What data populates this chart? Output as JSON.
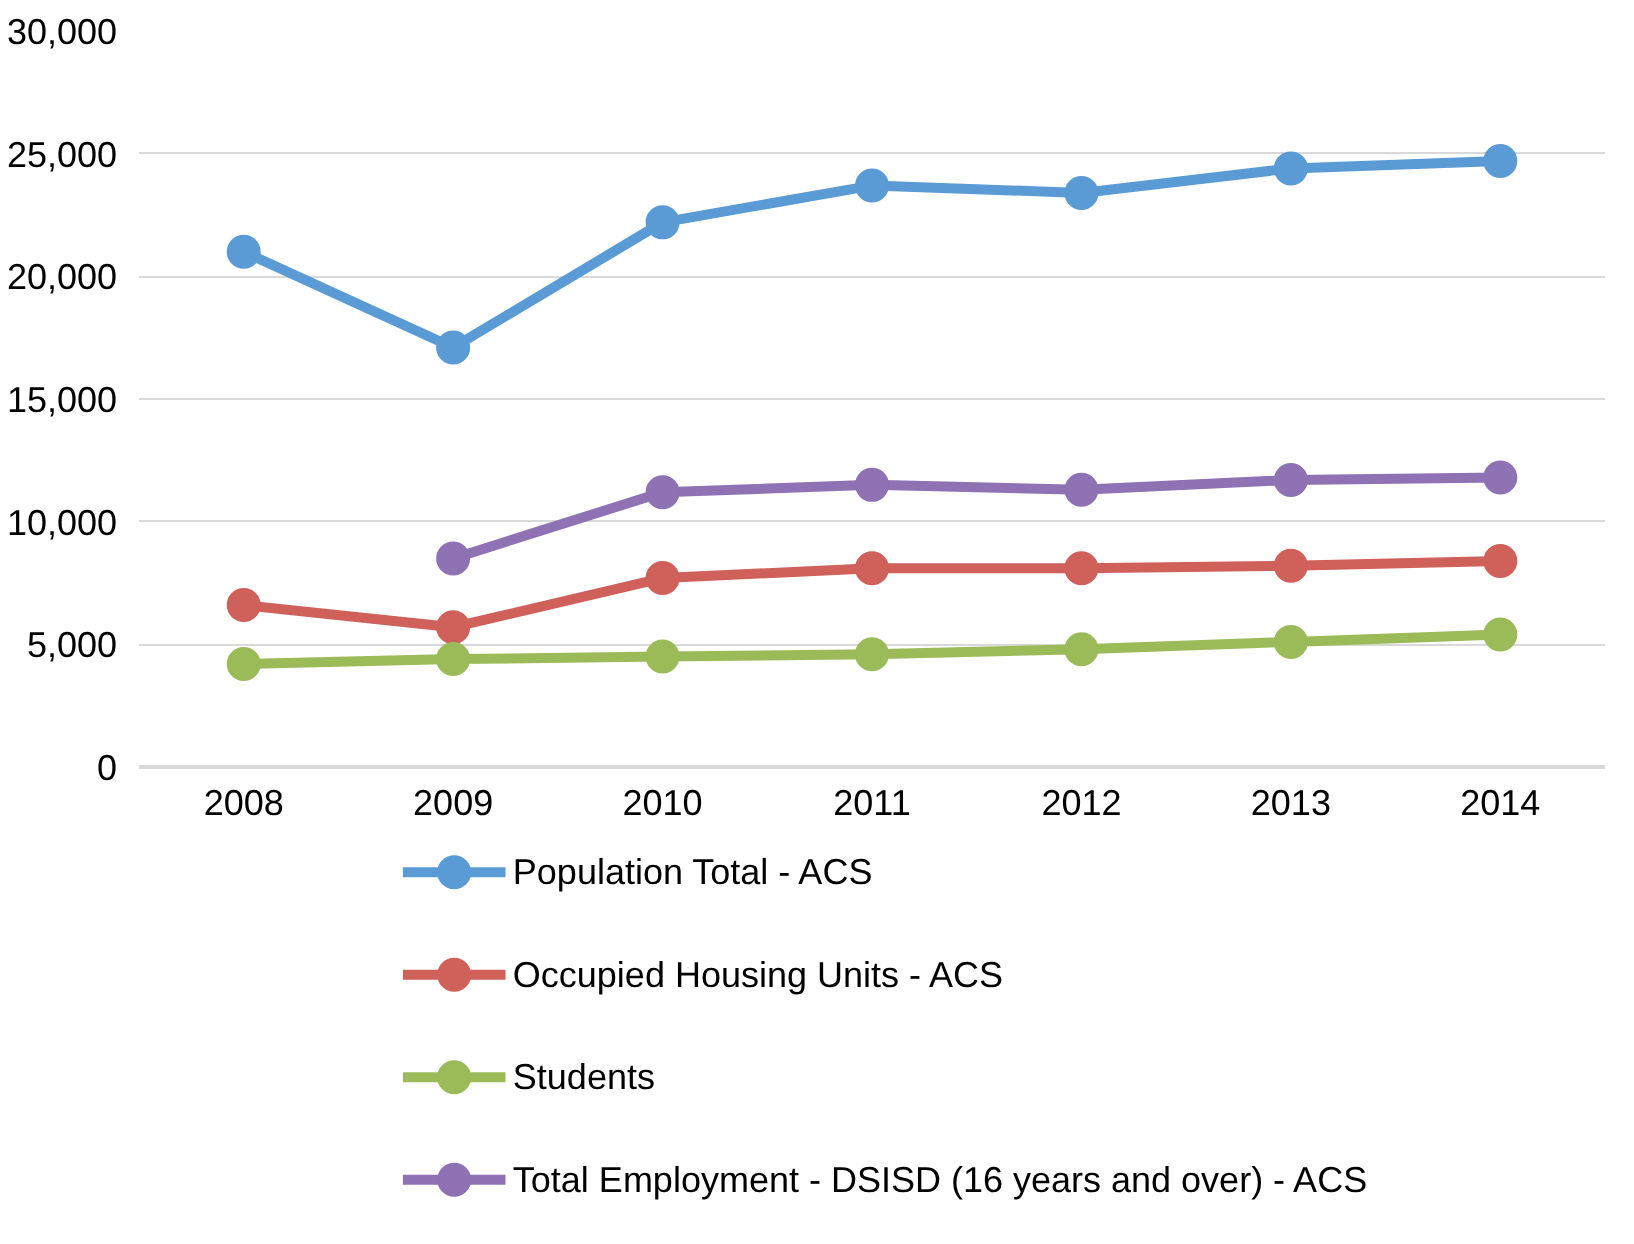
{
  "chart_data": {
    "type": "line",
    "categories": [
      "2008",
      "2009",
      "2010",
      "2011",
      "2012",
      "2013",
      "2014"
    ],
    "ylim": [
      0,
      30000
    ],
    "yticks": [
      {
        "value": 0,
        "label": "0"
      },
      {
        "value": 5000,
        "label": "5,000"
      },
      {
        "value": 10000,
        "label": "10,000"
      },
      {
        "value": 15000,
        "label": "15,000"
      },
      {
        "value": 20000,
        "label": "20,000"
      },
      {
        "value": 25000,
        "label": "25,000"
      },
      {
        "value": 30000,
        "label": "30,000"
      }
    ],
    "grid": "y",
    "legend": "bottom",
    "marker": "circle",
    "line_style": "solid",
    "series": [
      {
        "name": "Population Total - ACS",
        "color": "#5b9bd5",
        "values": [
          21000,
          17100,
          22200,
          23700,
          23400,
          24400,
          24700
        ]
      },
      {
        "name": "Occupied Housing Units - ACS",
        "color": "#d0605a",
        "values": [
          6600,
          5700,
          7700,
          8100,
          8100,
          8200,
          8400
        ]
      },
      {
        "name": "Students",
        "color": "#9bbb59",
        "values": [
          4200,
          4400,
          4500,
          4600,
          4800,
          5100,
          5400
        ]
      },
      {
        "name": "Total Employment - DSISD (16 years and over) - ACS",
        "color": "#8e72b3",
        "values": [
          null,
          8500,
          11200,
          11500,
          11300,
          11700,
          11800
        ]
      }
    ]
  }
}
